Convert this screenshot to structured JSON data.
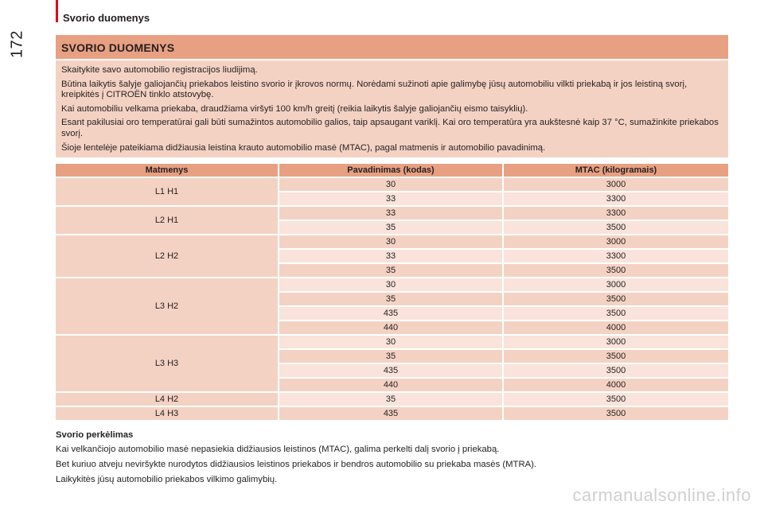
{
  "header": {
    "page_number": "172",
    "chapter": "Svorio duomenys"
  },
  "section": {
    "title": "SVORIO DUOMENYS",
    "intro": [
      "Skaitykite savo automobilio registracijos liudijimą.",
      "Būtina laikytis šalyje galiojančių priekabos leistino svorio ir įkrovos normų. Norėdami sužinoti apie galimybę jūsų automobiliu vilkti priekabą ir jos leistiną svorį, kreipkitės į CITROËN tinklo atstovybę.",
      "Kai automobiliu velkama priekaba, draudžiama viršyti 100 km/h greitį (reikia laikytis šalyje galiojančių eismo taisyklių).",
      "Esant pakilusiai oro temperatūrai gali būti sumažintos automobilio galios, taip apsaugant variklį. Kai oro temperatūra yra aukštesnė kaip 37 °C, sumažinkite priekabos svorį.",
      "Šioje lentelėje pateikiama didžiausia leistina krauto automobilio masė (MTAC), pagal matmenis ir automobilio pavadinimą."
    ]
  },
  "table": {
    "headers": [
      "Matmenys",
      "Pavadinimas (kodas)",
      "MTAC (kilogramais)"
    ],
    "groups": [
      {
        "model": "L1 H1",
        "rows": [
          [
            "30",
            "3000"
          ],
          [
            "33",
            "3300"
          ]
        ]
      },
      {
        "model": "L2 H1",
        "rows": [
          [
            "33",
            "3300"
          ],
          [
            "35",
            "3500"
          ]
        ]
      },
      {
        "model": "L2 H2",
        "rows": [
          [
            "30",
            "3000"
          ],
          [
            "33",
            "3300"
          ],
          [
            "35",
            "3500"
          ]
        ]
      },
      {
        "model": "L3 H2",
        "rows": [
          [
            "30",
            "3000"
          ],
          [
            "35",
            "3500"
          ],
          [
            "435",
            "3500"
          ],
          [
            "440",
            "4000"
          ]
        ]
      },
      {
        "model": "L3 H3",
        "rows": [
          [
            "30",
            "3000"
          ],
          [
            "35",
            "3500"
          ],
          [
            "435",
            "3500"
          ],
          [
            "440",
            "4000"
          ]
        ]
      },
      {
        "model": "L4 H2",
        "rows": [
          [
            "35",
            "3500"
          ]
        ]
      },
      {
        "model": "L4 H3",
        "rows": [
          [
            "435",
            "3500"
          ]
        ]
      }
    ]
  },
  "transfer": {
    "title": "Svorio perkėlimas",
    "paragraphs": [
      "Kai velkančiojo automobilio masė nepasiekia didžiausios leistinos (MTAC), galima perkelti dalį svorio į priekabą.",
      "Bet kuriuo atveju neviršykte nurodytos didžiausios leistinos priekabos ir bendros automobilio su priekaba masės (MTRA).",
      "Laikykitės jūsų automobilio priekabos vilkimo galimybių."
    ]
  },
  "watermark": "carmanualsonline.info"
}
